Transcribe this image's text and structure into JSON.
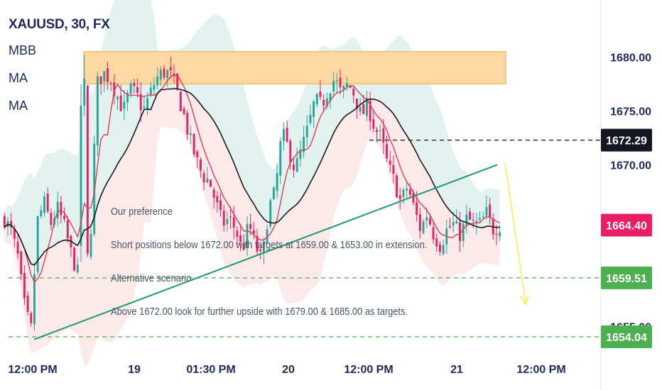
{
  "header": {
    "symbol": "XAUUSD, 30, FX",
    "indicators": [
      "MBB",
      "MA",
      "MA"
    ]
  },
  "annotations": {
    "preference_title": "Our preference",
    "preference_text": "Short positions below 1672.00 with targets at 1659.00 & 1653.00 in extension.",
    "alt_title": "Alternative scenario",
    "alt_text": "Above 1672.00 look for further upside with 1679.00 & 1685.00 as targets."
  },
  "colors": {
    "up": "#26a69a",
    "down": "#e91e63",
    "ma_fast": "#e53950",
    "ma_slow": "#1a1a1a",
    "band_upper": "#d8efe9",
    "band_lower": "#fbe3e3",
    "resistance_zone": "#ffd8a3",
    "trendline": "#1e9a6e",
    "support_line": "#4caf50",
    "arrow": "#ffeb3b",
    "axis_text": "#1e2a5a",
    "price_badge_red": "#e91e63",
    "price_badge_green": "#4caf50",
    "price_badge_black": "#131722"
  },
  "chart_data": {
    "type": "candlestick",
    "symbol": "XAUUSD",
    "timeframe": "30",
    "y_ticks": [
      1680.0,
      1675.0,
      1670.0,
      1655.0
    ],
    "y_tick_labels": [
      "1680.00",
      "1675.00",
      "1670.00",
      "1655.00"
    ],
    "x_tick_labels": [
      "12:00 PM",
      "19",
      "01:30 PM",
      "20",
      "12:00 PM",
      "21",
      "12:00 PM"
    ],
    "ylim": [
      1651.0,
      1683.0
    ],
    "close_path": [
      1665.0,
      1663.8,
      1661.5,
      1657.0,
      1654.5,
      1664.8,
      1666.5,
      1664.5,
      1666.0,
      1664.4,
      1662.0,
      1660.0,
      1659.0,
      1663.0,
      1677.5,
      1678.5,
      1678.0,
      1676.5,
      1675.0,
      1677.0,
      1676.5,
      1675.0,
      1676.5,
      1678.0,
      1678.6,
      1678.5,
      1677.0,
      1675.0,
      1672.5,
      1670.5,
      1669.0,
      1668.5,
      1666.5,
      1664.5,
      1665.0,
      1664.0,
      1662.0,
      1664.5,
      1662.5,
      1661.0,
      1666.0,
      1667.5,
      1673.0,
      1671.5,
      1669.5,
      1671.5,
      1673.5,
      1676.0,
      1675.5,
      1677.0,
      1678.0,
      1676.5,
      1677.5,
      1676.5,
      1674.5,
      1675.5,
      1673.5,
      1672.5,
      1670.0,
      1668.5,
      1666.5,
      1668.0,
      1666.0,
      1664.0,
      1665.5,
      1663.5,
      1662.5,
      1664.0,
      1664.5,
      1663.5,
      1665.0,
      1664.5,
      1664.5,
      1665.5,
      1664.0,
      1664.4
    ],
    "price_labels": [
      {
        "value": 1672.29,
        "label": "1672.29",
        "style": "black",
        "line": "dashed"
      },
      {
        "value": 1664.4,
        "label": "1664.40",
        "style": "red",
        "line": "none"
      },
      {
        "value": 1659.51,
        "label": "1659.51",
        "style": "green",
        "line": "dashed"
      },
      {
        "value": 1654.04,
        "label": "1654.04",
        "style": "green",
        "line": "dashed"
      }
    ],
    "resistance_zone": [
      1677.5,
      1680.5
    ],
    "trendline": {
      "from": 1653.8,
      "to": 1670.0
    },
    "projection": "down",
    "grid": false
  }
}
